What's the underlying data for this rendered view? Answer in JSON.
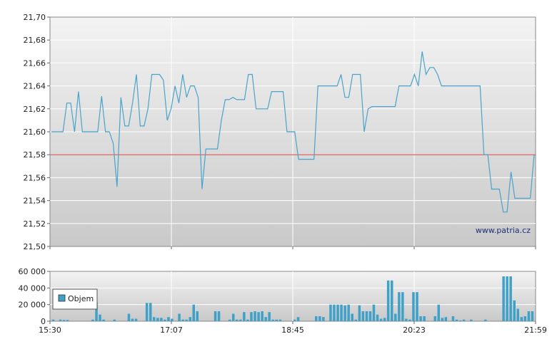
{
  "watermark": "www.patria.cz",
  "colors": {
    "price_line": "#4aa3c9",
    "reference_line": "#d94040",
    "volume_bar": "#3fa0c8",
    "grid": "#ffffff",
    "bg_top": "#f2f2f2",
    "bg_bottom": "#c8c8c8"
  },
  "chart_data": [
    {
      "type": "line",
      "series": [
        {
          "x": [
            0,
            1,
            2,
            3,
            4,
            5,
            6,
            7,
            8,
            9,
            10,
            11,
            12,
            13,
            14,
            15,
            16,
            17,
            18,
            19,
            20,
            21,
            22,
            23,
            24,
            25,
            26,
            27,
            28,
            29,
            30,
            31,
            32,
            33,
            34,
            35,
            36,
            37,
            38,
            39,
            40,
            41,
            42,
            43,
            44,
            45,
            46,
            47,
            48,
            49,
            50,
            51,
            52,
            53,
            54,
            55,
            56,
            57,
            58,
            59,
            60,
            61,
            62,
            63,
            64,
            65,
            66,
            67,
            68,
            69,
            70,
            71,
            72,
            73,
            74,
            75,
            76,
            77,
            78,
            79,
            80,
            81,
            82,
            83,
            84,
            85,
            86,
            87,
            88,
            89,
            90,
            91,
            92,
            93,
            94,
            95,
            96,
            97,
            98,
            99,
            100,
            101,
            102,
            103,
            104,
            105,
            106,
            107,
            108,
            109,
            110,
            111,
            112,
            113,
            114,
            115,
            116,
            117,
            118,
            119,
            120,
            121,
            122,
            123,
            124,
            125
          ],
          "values": [
            21.6,
            21.6,
            21.6,
            21.6,
            21.625,
            21.625,
            21.6,
            21.635,
            21.6,
            21.6,
            21.6,
            21.6,
            21.6,
            21.631,
            21.6,
            21.6,
            21.59,
            21.552,
            21.63,
            21.605,
            21.605,
            21.625,
            21.65,
            21.605,
            21.605,
            21.62,
            21.65,
            21.65,
            21.65,
            21.645,
            21.61,
            21.62,
            21.64,
            21.625,
            21.65,
            21.63,
            21.64,
            21.64,
            21.63,
            21.55,
            21.585,
            21.585,
            21.585,
            21.585,
            21.61,
            21.628,
            21.628,
            21.63,
            21.628,
            21.628,
            21.628,
            21.65,
            21.65,
            21.62,
            21.62,
            21.62,
            21.62,
            21.635,
            21.635,
            21.635,
            21.635,
            21.6,
            21.6,
            21.6,
            21.576,
            21.576,
            21.576,
            21.576,
            21.576,
            21.64,
            21.64,
            21.64,
            21.64,
            21.64,
            21.64,
            21.65,
            21.63,
            21.63,
            21.65,
            21.65,
            21.65,
            21.6,
            21.62,
            21.622,
            21.622,
            21.622,
            21.622,
            21.622,
            21.622,
            21.622,
            21.64,
            21.64,
            21.64,
            21.64,
            21.65,
            21.64,
            21.67,
            21.65,
            21.656,
            21.656,
            21.65,
            21.64,
            21.64,
            21.64,
            21.64,
            21.64,
            21.64,
            21.64,
            21.64,
            21.64,
            21.64,
            21.64,
            21.58,
            21.58,
            21.55,
            21.55,
            21.55,
            21.53,
            21.53,
            21.565,
            21.542,
            21.542,
            21.542,
            21.542,
            21.542,
            21.58
          ]
        }
      ],
      "reference_line": 21.58,
      "ylim": [
        21.5,
        21.7
      ],
      "yticks": [
        "21,50",
        "21,52",
        "21,54",
        "21,56",
        "21,58",
        "21,60",
        "21,62",
        "21,64",
        "21,66",
        "21,68",
        "21,70"
      ],
      "yticks_values": [
        21.5,
        21.52,
        21.54,
        21.56,
        21.58,
        21.6,
        21.62,
        21.64,
        21.66,
        21.68,
        21.7
      ],
      "grid": true
    },
    {
      "type": "bar",
      "legend": [
        "Objem"
      ],
      "legend_position": "left",
      "ylim": [
        0,
        60000
      ],
      "yticks": [
        "0",
        "20 000",
        "40 000",
        "60 000"
      ],
      "yticks_values": [
        0,
        20000,
        40000,
        60000
      ],
      "xticks": [
        "15:30",
        "17:07",
        "18:45",
        "20:23",
        "21:59"
      ],
      "values": [
        2000,
        0,
        2000,
        1500,
        1500,
        0,
        0,
        0,
        0,
        0,
        0,
        2000,
        23000,
        8000,
        2000,
        0,
        0,
        2000,
        0,
        0,
        0,
        9000,
        3000,
        3000,
        0,
        0,
        22000,
        22000,
        5000,
        4000,
        4000,
        2000,
        5000,
        3000,
        0,
        9000,
        2000,
        2000,
        5000,
        20000,
        12000,
        0,
        0,
        0,
        0,
        12000,
        12000,
        0,
        0,
        2000,
        9000,
        2000,
        2000,
        11000,
        2000,
        11000,
        12000,
        11000,
        12000,
        5000,
        11000,
        2000,
        2000,
        2000,
        0,
        0,
        0,
        2000,
        5000,
        0,
        0,
        0,
        0,
        6000,
        6000,
        5000,
        0,
        20000,
        20000,
        20000,
        20000,
        19000,
        20000,
        9000,
        2000,
        19000,
        12000,
        12000,
        12000,
        20000,
        8000,
        3000,
        4000,
        49000,
        49000,
        9000,
        35000,
        35000,
        3000,
        2000,
        35000,
        35000,
        6000,
        6000,
        0,
        0,
        6000,
        20000,
        4000,
        5000,
        0,
        6000,
        2000,
        1000,
        2000,
        0,
        2000,
        0,
        0,
        0,
        2000,
        0,
        0,
        0,
        0,
        54000,
        54000,
        54000,
        25000,
        15000,
        5000,
        6000,
        12000,
        12000
      ]
    }
  ]
}
